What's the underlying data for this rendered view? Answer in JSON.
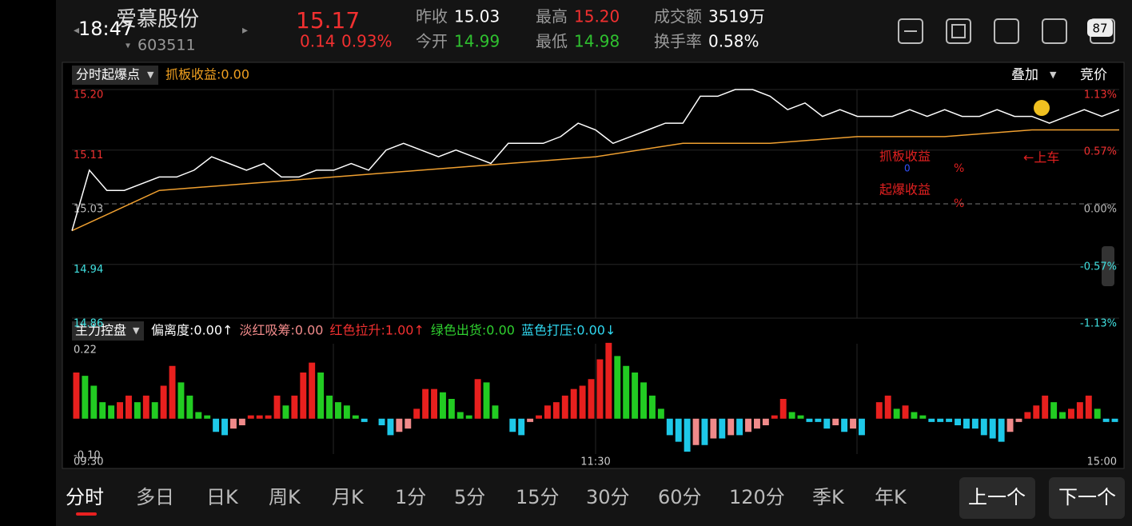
{
  "status": {
    "time": "18:47",
    "battery": "87"
  },
  "header": {
    "name": "爱慕股份",
    "code": "603511",
    "price": "15.17",
    "change": "0.14",
    "change_pct": "0.93%",
    "stats": [
      {
        "label": "昨收",
        "value": "15.03",
        "color": "#ffffff"
      },
      {
        "label": "今开",
        "value": "14.99",
        "color": "#2fc02f"
      },
      {
        "label": "最高",
        "value": "15.20",
        "color": "#f23030"
      },
      {
        "label": "最低",
        "value": "14.98",
        "color": "#2fc02f"
      },
      {
        "label": "成交额",
        "value": "3519万",
        "color": "#ffffff"
      },
      {
        "label": "换手率",
        "value": "0.58%",
        "color": "#ffffff"
      }
    ]
  },
  "main_chart": {
    "indicator": "分时起爆点",
    "indicator_value": "抓板收益:0.00",
    "overlay": "叠加",
    "auction": "竞价",
    "ylim": [
      14.86,
      15.2
    ],
    "yticks": [
      14.86,
      14.94,
      15.03,
      15.11,
      {
        "value": 15.2,
        "label": "15.20"
      }
    ],
    "pct_lim": [
      -1.13,
      1.13
    ],
    "pct_ticks": [
      {
        "value": -1.13,
        "label": "-1.13%"
      },
      {
        "value": -0.57,
        "label": "-0.57%"
      },
      {
        "value": 0,
        "label": "0.00%"
      },
      {
        "value": 0.57,
        "label": "0.57%"
      },
      {
        "value": 1.13,
        "label": "1.13%"
      }
    ],
    "price_color": "#ffffff",
    "avg_color": "#f0a030",
    "price": [
      14.99,
      15.08,
      15.05,
      15.05,
      15.06,
      15.07,
      15.07,
      15.08,
      15.1,
      15.09,
      15.08,
      15.09,
      15.07,
      15.07,
      15.08,
      15.08,
      15.09,
      15.08,
      15.11,
      15.12,
      15.11,
      15.1,
      15.11,
      15.1,
      15.09,
      15.12,
      15.12,
      15.12,
      15.13,
      15.15,
      15.14,
      15.12,
      15.13,
      15.14,
      15.15,
      15.15,
      15.19,
      15.19,
      15.2,
      15.2,
      15.19,
      15.17,
      15.18,
      15.16,
      15.17,
      15.16,
      15.16,
      15.16,
      15.17,
      15.16,
      15.17,
      15.16,
      15.16,
      15.17,
      15.16,
      15.16,
      15.15,
      15.16,
      15.17,
      15.16,
      15.17
    ],
    "avg": [
      14.99,
      15.05,
      15.06,
      15.07,
      15.08,
      15.09,
      15.1,
      15.12,
      15.12,
      15.13,
      15.13,
      15.14,
      15.14
    ],
    "annotations": {
      "grab": "抓板收益",
      "grab_value": "0",
      "grab_unit": "%",
      "burst": "起爆收益",
      "burst_unit": "%",
      "board": "←上车"
    }
  },
  "sub_chart": {
    "indicator": "主力控盘",
    "legend": [
      {
        "text": "偏离度:0.00↑",
        "color": "#ffffff"
      },
      {
        "text": "淡红吸筹:0.00",
        "color": "#f08a8a"
      },
      {
        "text": "红色拉升:1.00↑",
        "color": "#f23030"
      },
      {
        "text": "绿色出货:0.00",
        "color": "#2fd02f"
      },
      {
        "text": "蓝色打压:0.00↓",
        "color": "#30d8f0"
      }
    ],
    "ylim": [
      -0.1,
      0.22
    ],
    "yticks": [
      {
        "value": -0.1,
        "label": "-0.10"
      },
      0.22
    ],
    "colors": {
      "rise": "#e8201e",
      "fall": "#22cc22",
      "neg_fall": "#1ec8e8",
      "neg_rise": "#f08a8a"
    },
    "values": [
      0.14,
      0.13,
      0.1,
      0.05,
      0.04,
      0.05,
      0.07,
      0.05,
      0.07,
      0.05,
      0.1,
      0.16,
      0.11,
      0.07,
      0.02,
      0.01,
      -0.04,
      -0.05,
      -0.03,
      -0.02,
      0.01,
      0.01,
      0.01,
      0.07,
      0.04,
      0.07,
      0.14,
      0.17,
      0.14,
      0.07,
      0.05,
      0.04,
      0.01,
      -0.01,
      0,
      -0.02,
      -0.05,
      -0.04,
      -0.03,
      0.03,
      0.09,
      0.09,
      0.08,
      0.06,
      0.02,
      0.01,
      0.12,
      0.11,
      0.04,
      0,
      -0.04,
      -0.05,
      -0.01,
      0.01,
      0.04,
      0.05,
      0.07,
      0.09,
      0.1,
      0.12,
      0.18,
      0.23,
      0.19,
      0.16,
      0.14,
      0.11,
      0.07,
      0.03,
      -0.05,
      -0.07,
      -0.1,
      -0.08,
      -0.08,
      -0.06,
      -0.06,
      -0.05,
      -0.05,
      -0.04,
      -0.03,
      -0.02,
      0.01,
      0.06,
      0.02,
      0.01,
      -0.01,
      -0.01,
      -0.03,
      -0.02,
      -0.04,
      -0.03,
      -0.05,
      0,
      0.05,
      0.07,
      0.03,
      0.04,
      0.02,
      0.01,
      -0.01,
      -0.01,
      -0.01,
      -0.02,
      -0.03,
      -0.03,
      -0.05,
      -0.06,
      -0.07,
      -0.04,
      -0.01,
      0.02,
      0.04,
      0.07,
      0.05,
      0.02,
      0.03,
      0.05,
      0.07,
      0.03,
      -0.01,
      -0.01
    ]
  },
  "time_axis": [
    "09:30",
    "11:30",
    "15:00"
  ],
  "tabs": [
    "分时",
    "多日",
    "日K",
    "周K",
    "月K",
    "1分",
    "5分",
    "15分",
    "30分",
    "60分",
    "120分",
    "季K",
    "年K"
  ],
  "nav": [
    "上一个",
    "下一个"
  ]
}
